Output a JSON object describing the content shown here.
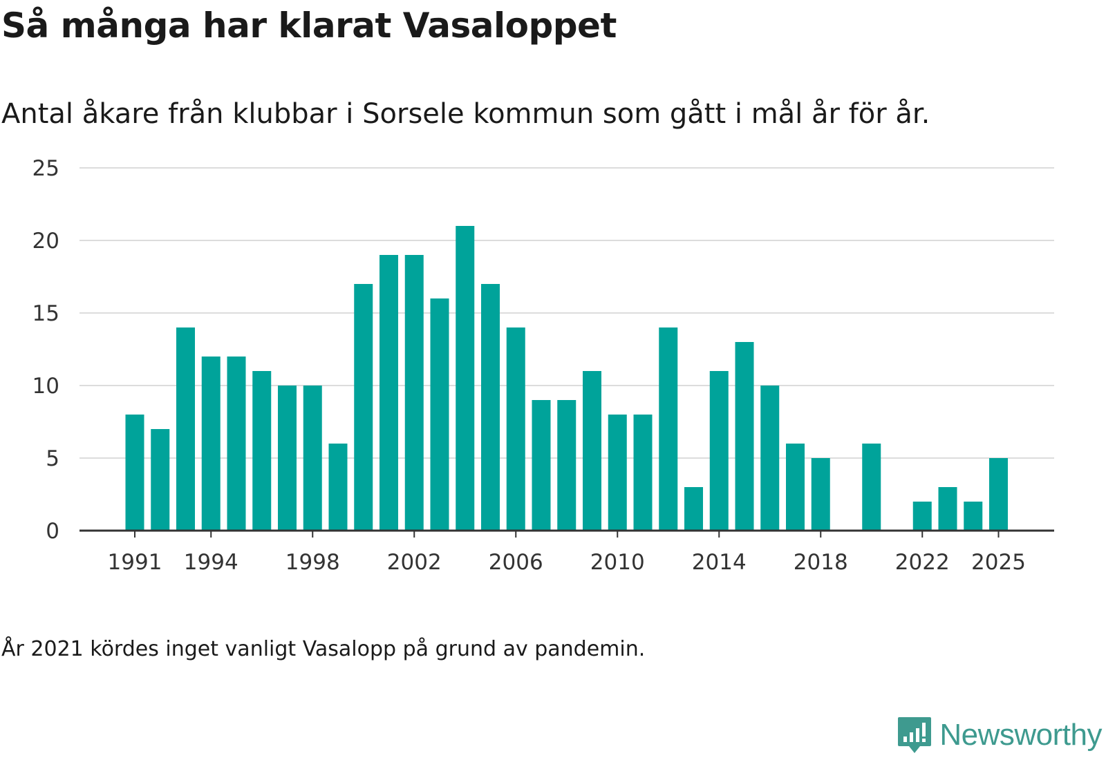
{
  "title": "Så många har klarat Vasaloppet",
  "subtitle": "Antal åkare från klubbar i Sorsele kommun som gått i mål år för år.",
  "note": "År 2021 kördes inget vanligt Vasalopp på grund av pandemin.",
  "brand": {
    "name": "Newsworthy",
    "icon": "newsworthy-logo-icon",
    "color": "#3e9a8f"
  },
  "chart_data": {
    "type": "bar",
    "title": "Så många har klarat Vasaloppet",
    "xlabel": "",
    "ylabel": "",
    "ylim": [
      0,
      25
    ],
    "yticks": [
      0,
      5,
      10,
      15,
      20,
      25
    ],
    "xtick_labels": [
      "1991",
      "1994",
      "1998",
      "2002",
      "2006",
      "2010",
      "2014",
      "2018",
      "2022",
      "2025"
    ],
    "grid": true,
    "bar_color": "#00a39a",
    "categories": [
      "1991",
      "1992",
      "1993",
      "1994",
      "1995",
      "1996",
      "1997",
      "1998",
      "1999",
      "2000",
      "2001",
      "2002",
      "2003",
      "2004",
      "2005",
      "2006",
      "2007",
      "2008",
      "2009",
      "2010",
      "2011",
      "2012",
      "2013",
      "2014",
      "2015",
      "2016",
      "2017",
      "2018",
      "2019",
      "2020",
      "2021",
      "2022",
      "2023",
      "2024",
      "2025"
    ],
    "values": [
      8,
      7,
      14,
      12,
      12,
      11,
      10,
      10,
      6,
      17,
      19,
      19,
      16,
      21,
      17,
      14,
      9,
      9,
      11,
      8,
      8,
      14,
      3,
      11,
      13,
      10,
      6,
      5,
      0,
      6,
      0,
      2,
      3,
      2,
      5
    ]
  }
}
